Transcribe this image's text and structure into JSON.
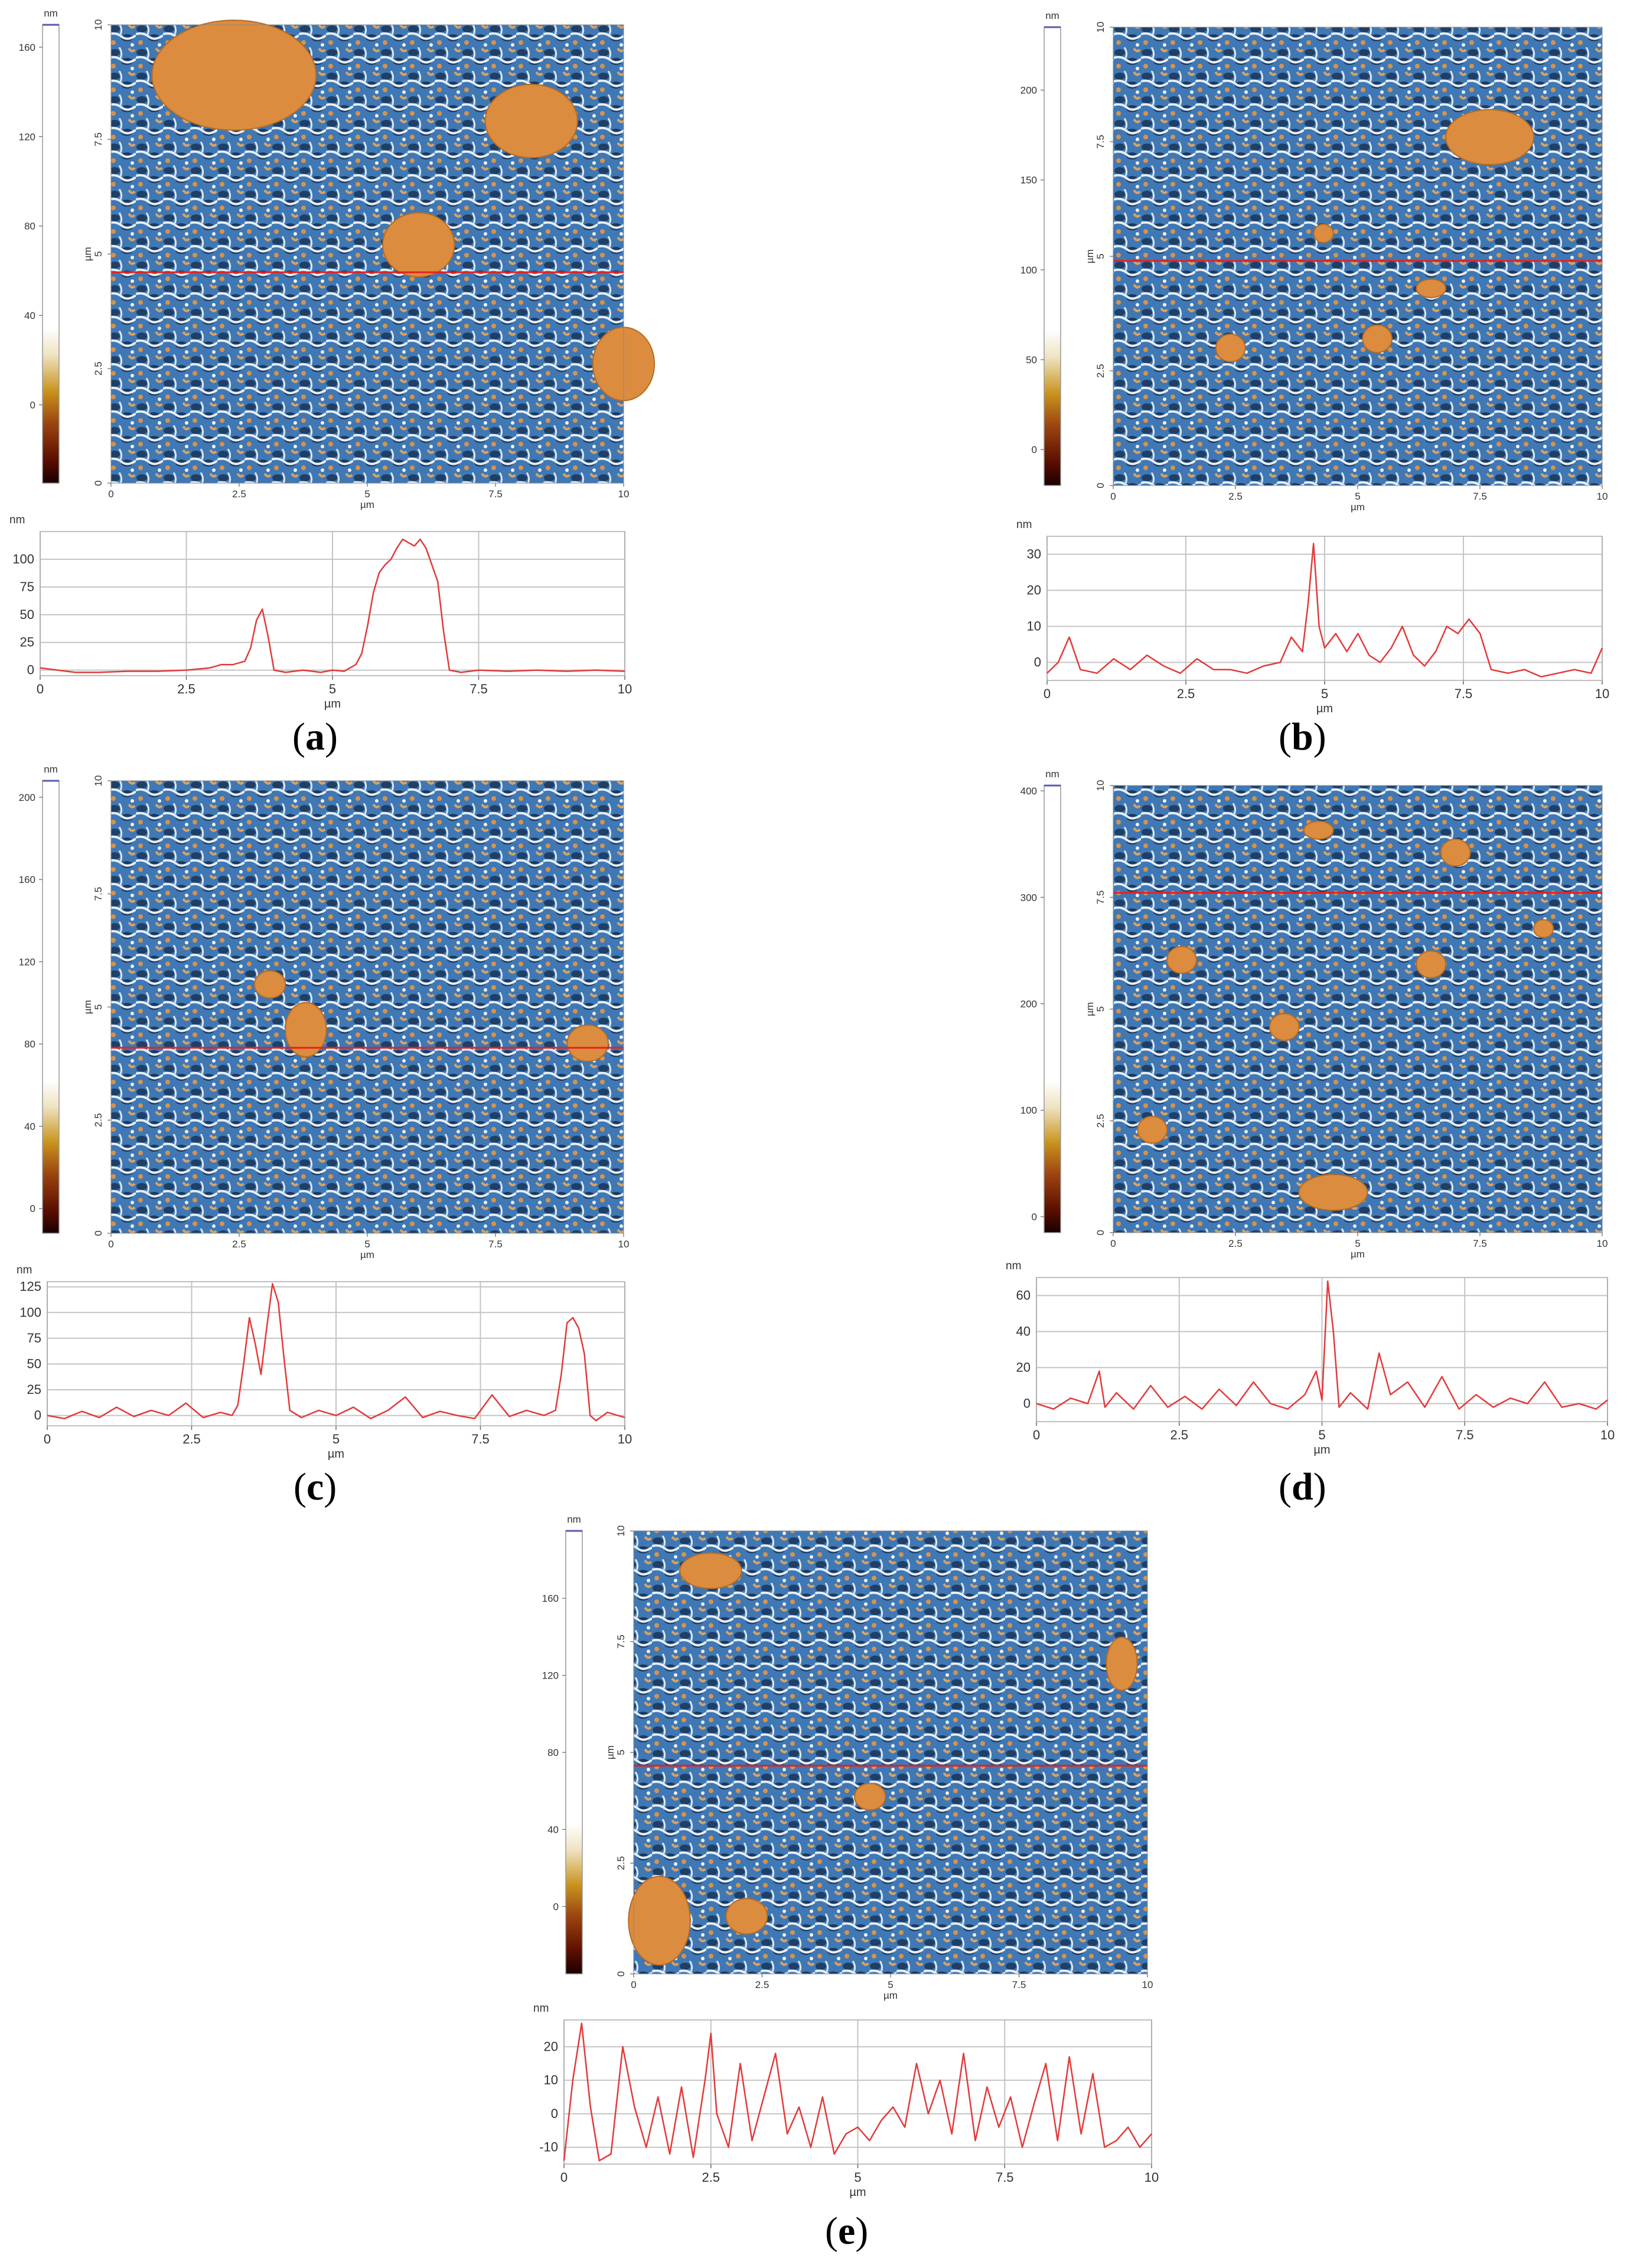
{
  "unit_nm": "nm",
  "unit_um": "µm",
  "panels": [
    {
      "id": "a",
      "label_open": "(",
      "label_letter": "a",
      "label_close": ")",
      "colorbar_ticks": [
        "0",
        "40",
        "80",
        "120",
        "160"
      ],
      "colorbar_range": [
        -35,
        170
      ],
      "image_x_ticks": [
        "0",
        "2.5",
        "5",
        "7.5",
        "10"
      ],
      "image_y_ticks": [
        "0",
        "2.5",
        "5",
        "7.5",
        "10"
      ],
      "scanline_y_um": 4.6,
      "particles": [
        [
          2.4,
          8.9,
          1.6,
          1.2
        ],
        [
          8.2,
          7.9,
          0.9,
          0.8
        ],
        [
          6.0,
          5.2,
          0.7,
          0.7
        ],
        [
          10.0,
          2.6,
          0.6,
          0.8
        ]
      ],
      "chart_data": {
        "type": "line",
        "ylabel": "nm",
        "xlabel": "µm",
        "xlim": [
          0,
          10
        ],
        "ylim": [
          -5,
          125
        ],
        "x_ticks": [
          0,
          2.5,
          5,
          7.5,
          10
        ],
        "x_tick_labels": [
          "0",
          "2.5",
          "5",
          "7.5",
          "10"
        ],
        "y_ticks": [
          0,
          25,
          50,
          75,
          100
        ],
        "y_tick_labels": [
          "0",
          "25",
          "50",
          "75",
          "100"
        ],
        "x": [
          0,
          0.3,
          0.6,
          1.0,
          1.5,
          2.0,
          2.5,
          2.9,
          3.1,
          3.3,
          3.5,
          3.6,
          3.7,
          3.8,
          3.9,
          4.0,
          4.2,
          4.5,
          4.8,
          5.0,
          5.2,
          5.4,
          5.5,
          5.6,
          5.7,
          5.8,
          5.9,
          6.0,
          6.1,
          6.2,
          6.3,
          6.4,
          6.5,
          6.6,
          6.7,
          6.8,
          6.9,
          7.0,
          7.2,
          7.5,
          8.0,
          8.5,
          9.0,
          9.5,
          10.0
        ],
        "y": [
          2,
          0,
          -2,
          -2,
          -1,
          -1,
          0,
          2,
          5,
          5,
          8,
          20,
          45,
          55,
          30,
          0,
          -2,
          0,
          -2,
          0,
          -1,
          5,
          15,
          40,
          70,
          88,
          95,
          100,
          110,
          118,
          115,
          112,
          118,
          110,
          95,
          80,
          35,
          0,
          -2,
          0,
          -1,
          0,
          -1,
          0,
          -1
        ]
      }
    },
    {
      "id": "b",
      "label_open": "(",
      "label_letter": "b",
      "label_close": ")",
      "colorbar_ticks": [
        "0",
        "50",
        "100",
        "150",
        "200"
      ],
      "colorbar_range": [
        -20,
        235
      ],
      "image_x_ticks": [
        "0",
        "2.5",
        "5",
        "7.5",
        "10"
      ],
      "image_y_ticks": [
        "0",
        "2.5",
        "5",
        "7.5",
        "10"
      ],
      "scanline_y_um": 4.9,
      "particles": [
        [
          7.7,
          7.6,
          0.9,
          0.6
        ],
        [
          2.4,
          3.0,
          0.3,
          0.3
        ],
        [
          5.4,
          3.2,
          0.3,
          0.3
        ],
        [
          6.5,
          4.3,
          0.3,
          0.2
        ],
        [
          4.3,
          5.5,
          0.2,
          0.2
        ]
      ],
      "chart_data": {
        "type": "line",
        "ylabel": "nm",
        "xlabel": "µm",
        "xlim": [
          0,
          10
        ],
        "ylim": [
          -5,
          35
        ],
        "x_ticks": [
          0,
          2.5,
          5,
          7.5,
          10
        ],
        "x_tick_labels": [
          "0",
          "2.5",
          "5",
          "7.5",
          "10"
        ],
        "y_ticks": [
          0,
          10,
          20,
          30
        ],
        "y_tick_labels": [
          "0",
          "10",
          "20",
          "30"
        ],
        "x": [
          0,
          0.2,
          0.4,
          0.6,
          0.9,
          1.2,
          1.5,
          1.8,
          2.1,
          2.4,
          2.7,
          3.0,
          3.3,
          3.6,
          3.9,
          4.2,
          4.4,
          4.6,
          4.7,
          4.8,
          4.9,
          5.0,
          5.2,
          5.4,
          5.6,
          5.8,
          6.0,
          6.2,
          6.4,
          6.6,
          6.8,
          7.0,
          7.2,
          7.4,
          7.6,
          7.8,
          8.0,
          8.3,
          8.6,
          8.9,
          9.2,
          9.5,
          9.8,
          10.0
        ],
        "y": [
          -3,
          0,
          7,
          -2,
          -3,
          1,
          -2,
          2,
          -1,
          -3,
          1,
          -2,
          -2,
          -3,
          -1,
          0,
          7,
          3,
          16,
          33,
          10,
          4,
          8,
          3,
          8,
          2,
          0,
          4,
          10,
          2,
          -1,
          3,
          10,
          8,
          12,
          8,
          -2,
          -3,
          -2,
          -4,
          -3,
          -2,
          -3,
          4
        ]
      }
    },
    {
      "id": "c",
      "label_open": "(",
      "label_letter": "c",
      "label_close": ")",
      "colorbar_ticks": [
        "0",
        "40",
        "80",
        "120",
        "160",
        "200"
      ],
      "colorbar_range": [
        -12,
        208
      ],
      "image_x_ticks": [
        "0",
        "2.5",
        "5",
        "7.5",
        "10"
      ],
      "image_y_ticks": [
        "0",
        "2.5",
        "5",
        "7.5",
        "10"
      ],
      "scanline_y_um": 4.1,
      "particles": [
        [
          3.8,
          4.5,
          0.4,
          0.6
        ],
        [
          3.1,
          5.5,
          0.3,
          0.3
        ],
        [
          9.3,
          4.2,
          0.4,
          0.4
        ]
      ],
      "chart_data": {
        "type": "line",
        "ylabel": "nm",
        "xlabel": "µm",
        "xlim": [
          0,
          10
        ],
        "ylim": [
          -10,
          130
        ],
        "x_ticks": [
          0,
          2.5,
          5,
          7.5,
          10
        ],
        "x_tick_labels": [
          "0",
          "2.5",
          "5",
          "7.5",
          "10"
        ],
        "y_ticks": [
          0,
          25,
          50,
          75,
          100,
          125
        ],
        "y_tick_labels": [
          "0",
          "25",
          "50",
          "75",
          "100",
          "125"
        ],
        "x": [
          0,
          0.3,
          0.6,
          0.9,
          1.2,
          1.5,
          1.8,
          2.1,
          2.4,
          2.7,
          3.0,
          3.2,
          3.3,
          3.4,
          3.5,
          3.6,
          3.7,
          3.8,
          3.9,
          4.0,
          4.1,
          4.2,
          4.4,
          4.7,
          5.0,
          5.3,
          5.6,
          5.9,
          6.2,
          6.5,
          6.8,
          7.1,
          7.4,
          7.7,
          8.0,
          8.3,
          8.6,
          8.8,
          8.9,
          9.0,
          9.1,
          9.2,
          9.3,
          9.4,
          9.5,
          9.7,
          10.0
        ],
        "y": [
          0,
          -3,
          4,
          -2,
          8,
          -1,
          5,
          0,
          12,
          -2,
          3,
          0,
          10,
          50,
          95,
          70,
          40,
          85,
          128,
          110,
          55,
          5,
          -2,
          5,
          0,
          8,
          -3,
          5,
          18,
          -2,
          4,
          0,
          -3,
          20,
          -1,
          5,
          0,
          5,
          40,
          90,
          95,
          85,
          60,
          0,
          -5,
          3,
          -2
        ]
      }
    },
    {
      "id": "d",
      "label_open": "(",
      "label_letter": "d",
      "label_close": ")",
      "colorbar_ticks": [
        "0",
        "100",
        "200",
        "300",
        "400"
      ],
      "colorbar_range": [
        -15,
        405
      ],
      "image_x_ticks": [
        "0",
        "2.5",
        "5",
        "7.5",
        "10"
      ],
      "image_y_ticks": [
        "0",
        "2.5",
        "5",
        "7.5",
        "10"
      ],
      "scanline_y_um": 7.6,
      "particles": [
        [
          4.5,
          0.9,
          0.7,
          0.4
        ],
        [
          0.8,
          2.3,
          0.3,
          0.3
        ],
        [
          3.5,
          4.6,
          0.3,
          0.3
        ],
        [
          6.5,
          6.0,
          0.3,
          0.3
        ],
        [
          7.0,
          8.5,
          0.3,
          0.3
        ],
        [
          1.4,
          6.1,
          0.3,
          0.3
        ],
        [
          8.8,
          6.8,
          0.2,
          0.2
        ],
        [
          4.2,
          9.0,
          0.3,
          0.2
        ]
      ],
      "chart_data": {
        "type": "line",
        "ylabel": "nm",
        "xlabel": "µm",
        "xlim": [
          0,
          10
        ],
        "ylim": [
          -10,
          70
        ],
        "x_ticks": [
          0,
          2.5,
          5,
          7.5,
          10
        ],
        "x_tick_labels": [
          "0",
          "2.5",
          "5",
          "7.5",
          "10"
        ],
        "y_ticks": [
          0,
          20,
          40,
          60
        ],
        "y_tick_labels": [
          "0",
          "20",
          "40",
          "60"
        ],
        "x": [
          0,
          0.3,
          0.6,
          0.9,
          1.1,
          1.2,
          1.4,
          1.7,
          2.0,
          2.3,
          2.6,
          2.9,
          3.2,
          3.5,
          3.8,
          4.1,
          4.4,
          4.7,
          4.9,
          5.0,
          5.1,
          5.2,
          5.3,
          5.5,
          5.8,
          6.0,
          6.2,
          6.5,
          6.8,
          7.1,
          7.4,
          7.7,
          8.0,
          8.3,
          8.6,
          8.9,
          9.2,
          9.5,
          9.8,
          10.0
        ],
        "y": [
          0,
          -3,
          3,
          0,
          18,
          -2,
          6,
          -3,
          10,
          -2,
          4,
          -3,
          8,
          -1,
          12,
          0,
          -3,
          5,
          18,
          2,
          68,
          40,
          -2,
          6,
          -3,
          28,
          5,
          12,
          -2,
          15,
          -3,
          5,
          -2,
          3,
          0,
          12,
          -2,
          0,
          -3,
          2
        ]
      }
    },
    {
      "id": "e",
      "label_open": "(",
      "label_letter": "e",
      "label_close": ")",
      "colorbar_ticks": [
        "0",
        "40",
        "80",
        "120",
        "160"
      ],
      "colorbar_range": [
        -35,
        195
      ],
      "image_x_ticks": [
        "0",
        "2.5",
        "5",
        "7.5",
        "10"
      ],
      "image_y_ticks": [
        "0",
        "2.5",
        "5",
        "7.5",
        "10"
      ],
      "scanline_y_um": 4.7,
      "particles": [
        [
          1.5,
          9.1,
          0.6,
          0.4
        ],
        [
          9.5,
          7.0,
          0.3,
          0.6
        ],
        [
          0.5,
          1.2,
          0.6,
          1.0
        ],
        [
          2.2,
          1.3,
          0.4,
          0.4
        ],
        [
          4.6,
          4.0,
          0.3,
          0.3
        ]
      ],
      "chart_data": {
        "type": "line",
        "ylabel": "nm",
        "xlabel": "µm",
        "xlim": [
          0,
          10
        ],
        "ylim": [
          -15,
          28
        ],
        "x_ticks": [
          0,
          2.5,
          5,
          7.5,
          10
        ],
        "x_tick_labels": [
          "0",
          "2.5",
          "5",
          "7.5",
          "10"
        ],
        "y_ticks": [
          -10,
          0,
          10,
          20
        ],
        "y_tick_labels": [
          "-10",
          "0",
          "10",
          "20"
        ],
        "x": [
          0,
          0.15,
          0.3,
          0.45,
          0.6,
          0.8,
          1.0,
          1.2,
          1.4,
          1.6,
          1.8,
          2.0,
          2.2,
          2.4,
          2.5,
          2.6,
          2.8,
          3.0,
          3.2,
          3.4,
          3.6,
          3.8,
          4.0,
          4.2,
          4.4,
          4.6,
          4.8,
          5.0,
          5.2,
          5.4,
          5.6,
          5.8,
          6.0,
          6.2,
          6.4,
          6.6,
          6.8,
          7.0,
          7.2,
          7.4,
          7.6,
          7.8,
          8.0,
          8.2,
          8.4,
          8.6,
          8.8,
          9.0,
          9.2,
          9.4,
          9.6,
          9.8,
          10.0
        ],
        "y": [
          -14,
          10,
          27,
          2,
          -14,
          -12,
          20,
          2,
          -10,
          5,
          -12,
          8,
          -13,
          10,
          24,
          0,
          -10,
          15,
          -8,
          5,
          18,
          -6,
          2,
          -10,
          5,
          -12,
          -6,
          -4,
          -8,
          -2,
          2,
          -4,
          15,
          0,
          10,
          -6,
          18,
          -8,
          8,
          -4,
          5,
          -10,
          3,
          15,
          -8,
          17,
          -6,
          12,
          -10,
          -8,
          -4,
          -10,
          -6
        ]
      }
    }
  ]
}
